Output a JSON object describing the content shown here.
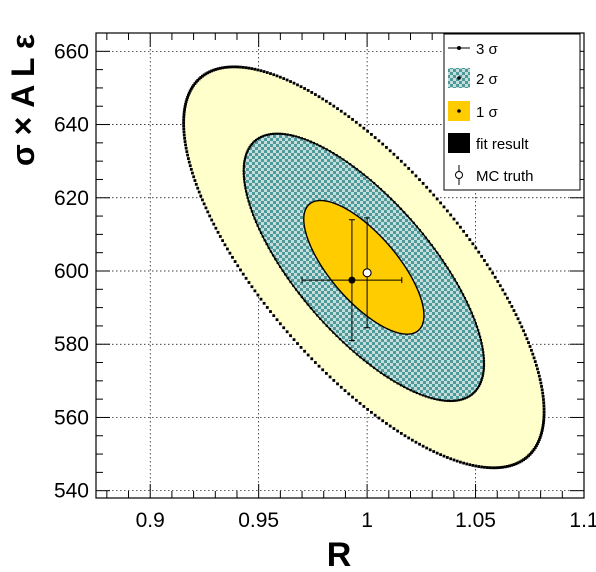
{
  "chart_data": {
    "type": "contour",
    "xlabel": "R",
    "ylabel": "σ × A L ε",
    "xlim": [
      0.875,
      1.1
    ],
    "ylim": [
      538,
      665
    ],
    "x_ticks": [
      0.9,
      0.95,
      1,
      1.05,
      1.1
    ],
    "x_tick_labels": [
      "0.9",
      "0.95",
      "1",
      "1.05",
      "1.1"
    ],
    "y_ticks": [
      540,
      560,
      580,
      600,
      620,
      640,
      660
    ],
    "y_tick_labels": [
      "540",
      "560",
      "580",
      "600",
      "620",
      "640",
      "660"
    ],
    "grid": true,
    "legend_position": "top-right",
    "legend": [
      {
        "label": "3 σ",
        "style": "dots"
      },
      {
        "label": "2 σ",
        "style": "hatched-teal"
      },
      {
        "label": "1 σ",
        "style": "solid-orange"
      },
      {
        "label": "fit result",
        "style": "filled-marker"
      },
      {
        "label": "MC truth",
        "style": "open-marker"
      }
    ],
    "fit_result": {
      "x": 0.993,
      "y": 597.5,
      "x_err": 0.023,
      "y_err": 16.5
    },
    "mc_truth": {
      "x": 1.0,
      "y": 599.5,
      "x_err": 0.0,
      "y_err": 15
    },
    "contours": [
      {
        "name": "3 σ",
        "center": [
          0.9985,
          601
        ],
        "sigma_x": 0.0277,
        "sigma_y": 18.25,
        "rho": -0.72,
        "k": 3,
        "fill": "#ffffcc"
      },
      {
        "name": "2 σ",
        "center": [
          0.9985,
          601
        ],
        "sigma_x": 0.0277,
        "sigma_y": 18.25,
        "rho": -0.72,
        "k": 2,
        "fill": "#5ea7a6"
      },
      {
        "name": "1 σ",
        "center": [
          0.9985,
          601
        ],
        "sigma_x": 0.0277,
        "sigma_y": 18.25,
        "rho": -0.72,
        "k": 1,
        "fill": "#ffcc00"
      }
    ],
    "colors": {
      "band3": "#ffffcc",
      "band2": "#5ea7a6",
      "band1": "#ffcc00"
    }
  }
}
